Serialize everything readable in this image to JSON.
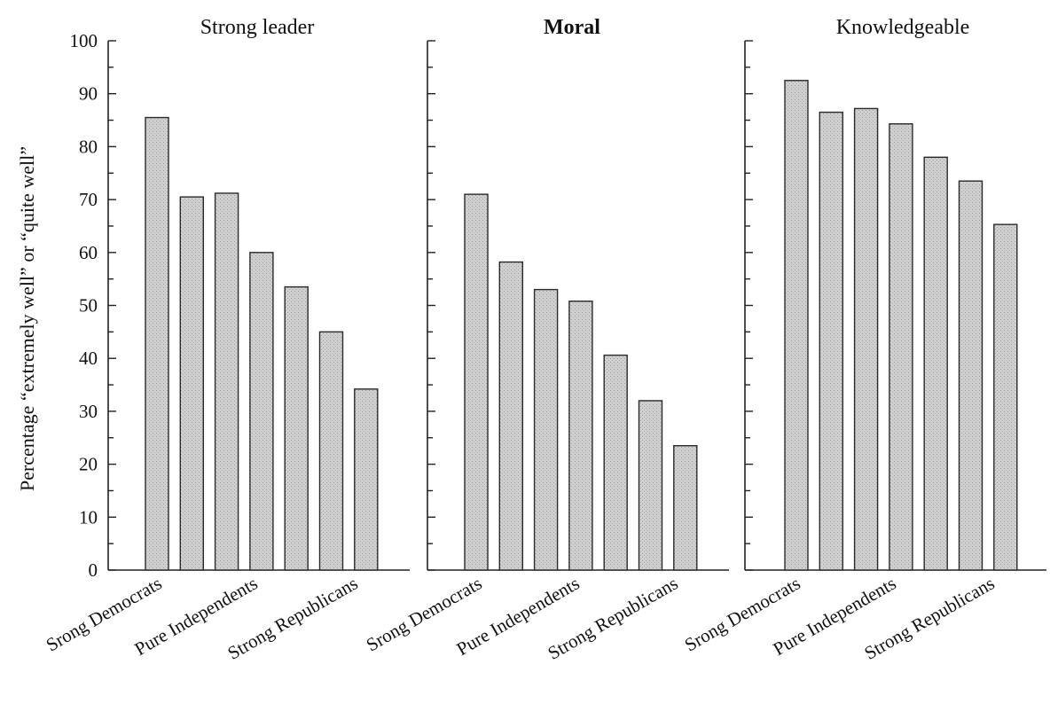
{
  "chart_data": [
    {
      "type": "bar",
      "title": "Strong leader",
      "ylabel": "Percentage “extremely well” or “quite well”",
      "ylim": [
        0,
        100
      ],
      "yticks": [
        "0",
        "10",
        "20",
        "30",
        "40",
        "50",
        "60",
        "70",
        "80",
        "90",
        "100"
      ],
      "category_labels": [
        "Srong Democrats",
        "Pure Independents",
        "Strong Republicans"
      ],
      "values": [
        85.5,
        70.5,
        71.2,
        60,
        53.5,
        45,
        34.2
      ]
    },
    {
      "type": "bar",
      "title": "Moral",
      "ylim": [
        0,
        100
      ],
      "category_labels": [
        "Srong Democrats",
        "Pure Independents",
        "Strong Republicans"
      ],
      "values": [
        71,
        58.2,
        53,
        50.8,
        40.6,
        32,
        23.5
      ]
    },
    {
      "type": "bar",
      "title": "Knowledgeable",
      "ylim": [
        0,
        100
      ],
      "category_labels": [
        "Srong Democrats",
        "Pure Independents",
        "Strong Republicans"
      ],
      "values": [
        92.5,
        86.5,
        87.2,
        84.3,
        78,
        73.5,
        65.3
      ]
    }
  ]
}
